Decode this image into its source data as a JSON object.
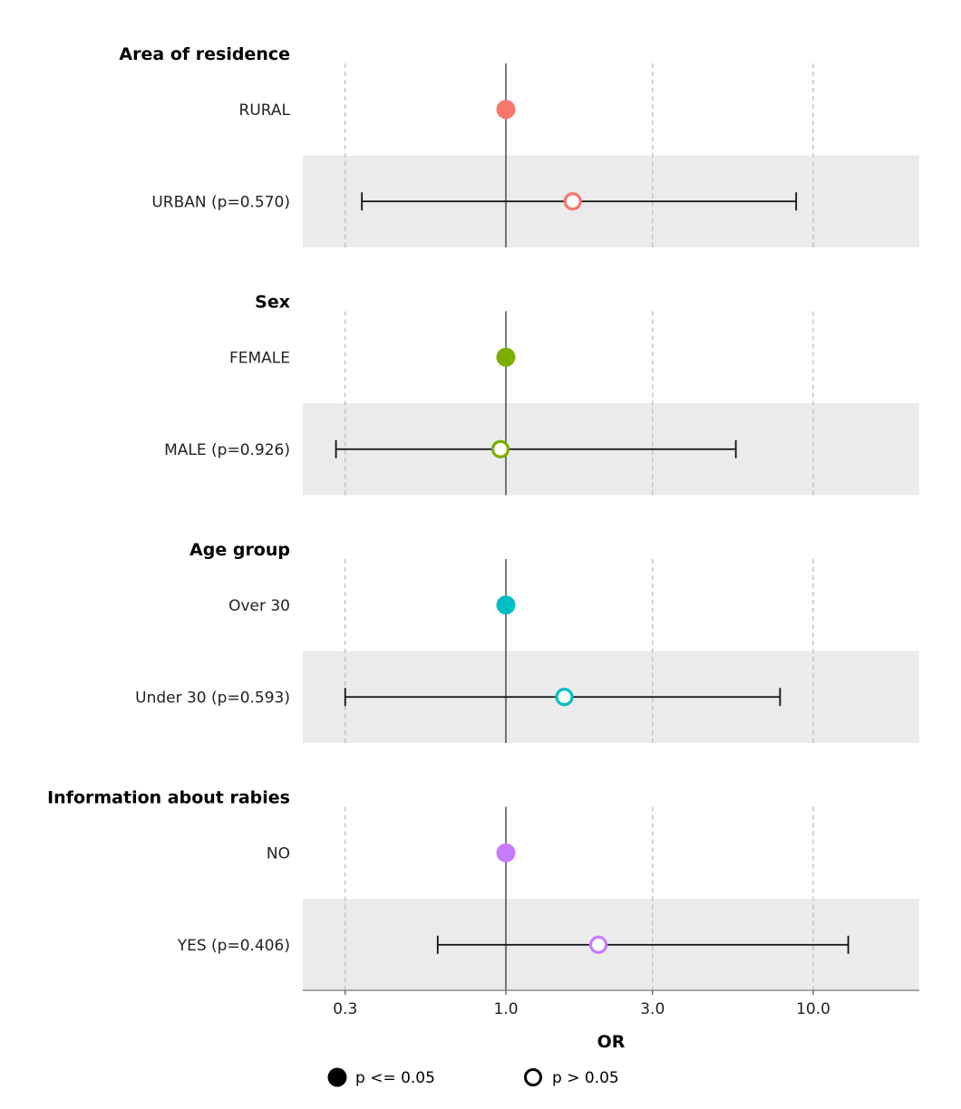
{
  "chart_data": {
    "type": "forest",
    "xlabel": "OR",
    "x_scale": "log",
    "xlim": [
      0.24,
      20
    ],
    "reference_value": 1.0,
    "x_ticks": [
      {
        "value": 0.3,
        "label": "0.3"
      },
      {
        "value": 1.0,
        "label": "1.0"
      },
      {
        "value": 3.0,
        "label": "3.0"
      },
      {
        "value": 10.0,
        "label": "10.0"
      }
    ],
    "grid": "vertical dashed",
    "groups": [
      {
        "title": "Area of residence",
        "color": "#F8766D",
        "rows": [
          {
            "label": "RURAL",
            "reference": true,
            "or": 1.0
          },
          {
            "label": "URBAN (p=0.570)",
            "reference": false,
            "or": 1.65,
            "ci_low": 0.34,
            "ci_high": 8.8,
            "p": 0.57
          }
        ]
      },
      {
        "title": "Sex",
        "color": "#7CAE00",
        "rows": [
          {
            "label": "FEMALE",
            "reference": true,
            "or": 1.0
          },
          {
            "label": "MALE (p=0.926)",
            "reference": false,
            "or": 0.96,
            "ci_low": 0.28,
            "ci_high": 5.6,
            "p": 0.926
          }
        ]
      },
      {
        "title": "Age group",
        "color": "#00BFC4",
        "rows": [
          {
            "label": "Over 30",
            "reference": true,
            "or": 1.0
          },
          {
            "label": "Under 30 (p=0.593)",
            "reference": false,
            "or": 1.55,
            "ci_low": 0.3,
            "ci_high": 7.8,
            "p": 0.593
          }
        ]
      },
      {
        "title": "Information about rabies",
        "color": "#C77CFF",
        "rows": [
          {
            "label": "NO",
            "reference": true,
            "or": 1.0
          },
          {
            "label": "YES (p=0.406)",
            "reference": false,
            "or": 2.0,
            "ci_low": 0.6,
            "ci_high": 13.0,
            "p": 0.406
          }
        ]
      }
    ],
    "legend": {
      "position": "bottom",
      "items": [
        {
          "marker": "filled",
          "label": "p <= 0.05"
        },
        {
          "marker": "open",
          "label": "p > 0.05"
        }
      ]
    }
  }
}
